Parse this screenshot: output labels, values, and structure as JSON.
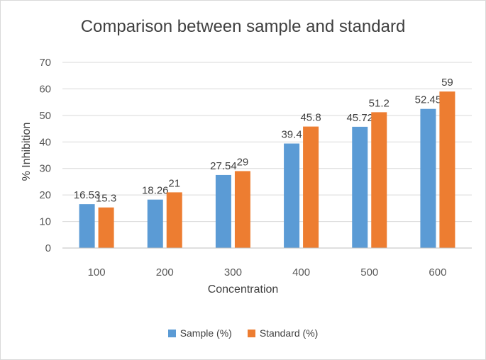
{
  "chart_data": {
    "type": "bar",
    "title": "Comparison between sample and standard",
    "xlabel": "Concentration",
    "ylabel": "% Inhibition",
    "categories": [
      "100",
      "200",
      "300",
      "400",
      "500",
      "600"
    ],
    "series": [
      {
        "name": "Sample (%)",
        "color": "#5b9bd5",
        "values": [
          16.53,
          18.26,
          27.54,
          39.4,
          45.72,
          52.45
        ]
      },
      {
        "name": "Standard (%)",
        "color": "#ed7d31",
        "values": [
          15.3,
          21,
          29,
          45.8,
          51.2,
          59
        ]
      }
    ],
    "ylim": [
      0,
      70
    ],
    "yticks": [
      0,
      10,
      20,
      30,
      40,
      50,
      60,
      70
    ],
    "grid": true,
    "data_labels": true,
    "legend": "bottom"
  }
}
